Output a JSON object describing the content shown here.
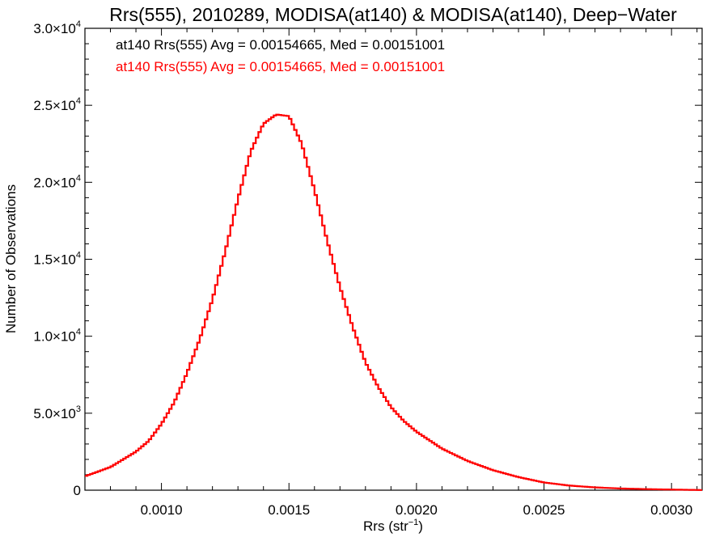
{
  "chart_data": {
    "type": "histogram",
    "title": "Rrs(555), 2010289, MODISA(at140) & MODISA(at140), Deep−Water",
    "xlabel": {
      "text": "Rrs (str",
      "sup": "−1",
      "tail": ")"
    },
    "ylabel": "Number of Observations",
    "xlim": [
      0.0007,
      0.00312
    ],
    "ylim": [
      0,
      30000
    ],
    "x_ticks": [
      {
        "value": 0.001,
        "label": "0.0010"
      },
      {
        "value": 0.0015,
        "label": "0.0015"
      },
      {
        "value": 0.002,
        "label": "0.0020"
      },
      {
        "value": 0.0025,
        "label": "0.0025"
      },
      {
        "value": 0.003,
        "label": "0.0030"
      }
    ],
    "y_ticks": [
      {
        "value": 0,
        "mant": "0",
        "exp": ""
      },
      {
        "value": 5000,
        "mant": "5.0×10",
        "exp": "3"
      },
      {
        "value": 10000,
        "mant": "1.0×10",
        "exp": "4"
      },
      {
        "value": 15000,
        "mant": "1.5×10",
        "exp": "4"
      },
      {
        "value": 20000,
        "mant": "2.0×10",
        "exp": "4"
      },
      {
        "value": 25000,
        "mant": "2.5×10",
        "exp": "4"
      },
      {
        "value": 30000,
        "mant": "3.0×10",
        "exp": "4"
      }
    ],
    "annotations": [
      {
        "text": "at140 Rrs(555) Avg = 0.00154665, Med = 0.00151001",
        "color": "#000000"
      },
      {
        "text": "at140 Rrs(555) Avg = 0.00154665, Med = 0.00151001",
        "color": "#ff0000"
      }
    ],
    "series": [
      {
        "color": "#ff0000",
        "bin_width": 1e-05,
        "points": [
          [
            0.0007,
            900
          ],
          [
            0.0008,
            1500
          ],
          [
            0.0009,
            2500
          ],
          [
            0.00095,
            3200
          ],
          [
            0.001,
            4300
          ],
          [
            0.00105,
            5700
          ],
          [
            0.0011,
            7600
          ],
          [
            0.00115,
            9800
          ],
          [
            0.0012,
            12400
          ],
          [
            0.00125,
            15500
          ],
          [
            0.0013,
            18900
          ],
          [
            0.00135,
            22000
          ],
          [
            0.0014,
            23800
          ],
          [
            0.00145,
            24400
          ],
          [
            0.0015,
            24300
          ],
          [
            0.00155,
            22500
          ],
          [
            0.0016,
            19500
          ],
          [
            0.00165,
            16200
          ],
          [
            0.0017,
            13200
          ],
          [
            0.00175,
            10600
          ],
          [
            0.0018,
            8300
          ],
          [
            0.00185,
            6700
          ],
          [
            0.0019,
            5400
          ],
          [
            0.00195,
            4500
          ],
          [
            0.002,
            3800
          ],
          [
            0.0021,
            2700
          ],
          [
            0.0022,
            1900
          ],
          [
            0.0023,
            1300
          ],
          [
            0.0024,
            850
          ],
          [
            0.0025,
            500
          ],
          [
            0.0026,
            300
          ],
          [
            0.0027,
            180
          ],
          [
            0.0028,
            110
          ],
          [
            0.0029,
            70
          ],
          [
            0.003,
            40
          ],
          [
            0.00312,
            10
          ]
        ]
      }
    ]
  }
}
